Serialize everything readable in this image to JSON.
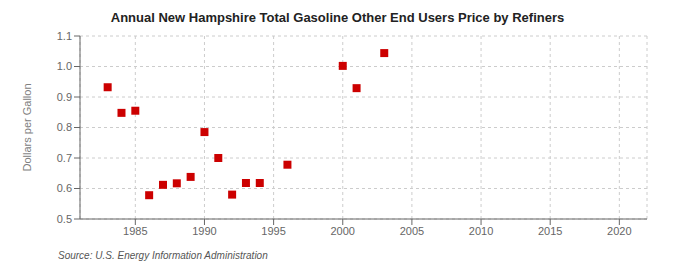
{
  "chart_data": {
    "type": "scatter",
    "title": "Annual New Hampshire Total Gasoline Other End Users Price by Refiners",
    "ylabel": "Dollars per Gallon",
    "source": "Source: U.S. Energy Information Administration",
    "x": [
      1983,
      1984,
      1985,
      1986,
      1987,
      1988,
      1989,
      1990,
      1991,
      1992,
      1993,
      1994,
      1996,
      2000,
      2001,
      2003
    ],
    "values": [
      0.932,
      0.848,
      0.855,
      0.578,
      0.612,
      0.617,
      0.638,
      0.785,
      0.7,
      0.58,
      0.618,
      0.618,
      0.678,
      1.002,
      0.929,
      1.044
    ],
    "color": "#cc0000",
    "marker": "square",
    "xlim": [
      1981,
      2022
    ],
    "ylim": [
      0.5,
      1.1
    ],
    "xticks": [
      1985,
      1990,
      1995,
      2000,
      2005,
      2010,
      2015,
      2020
    ],
    "yticks": [
      0.5,
      0.6,
      0.7,
      0.8,
      0.9,
      {
        "value": 1,
        "label": "1.0"
      },
      1.1
    ],
    "grid": true
  }
}
